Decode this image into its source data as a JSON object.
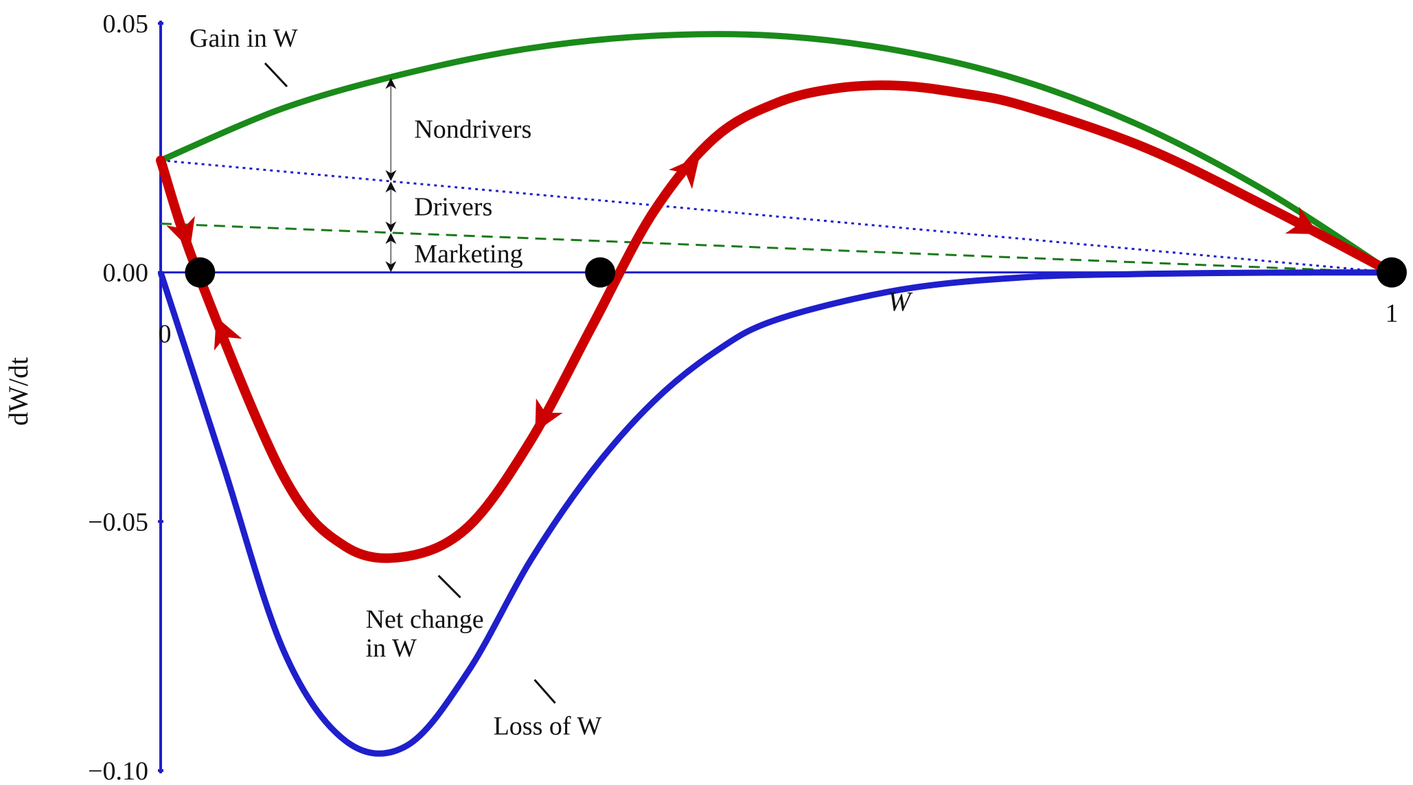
{
  "chart_data": {
    "type": "line",
    "title": "",
    "xlabel": "W",
    "ylabel": "dW/dt",
    "xlim": [
      0,
      1
    ],
    "ylim": [
      -0.1,
      0.05
    ],
    "yticks": [
      "0.05",
      "0.00",
      "−0.05",
      "−0.10"
    ],
    "xticks": [
      "0",
      "1"
    ],
    "grid": false,
    "colors": {
      "gain": "#1a8a1a",
      "loss": "#1f1fcc",
      "net": "#cc0000",
      "axis": "#1f1fcc",
      "nondrivers_line": "#1f1fcc",
      "marketing_line": "#1a7a1a"
    },
    "series": [
      {
        "name": "Gain in W",
        "x": [
          0,
          0.1,
          0.2,
          0.3,
          0.4,
          0.5,
          0.6,
          0.7,
          0.8,
          0.9,
          1.0
        ],
        "y": [
          0.0225,
          0.033,
          0.04,
          0.045,
          0.0475,
          0.0475,
          0.0445,
          0.0385,
          0.029,
          0.016,
          0.0
        ]
      },
      {
        "name": "Loss of W",
        "x": [
          0,
          0.05,
          0.1,
          0.15,
          0.2,
          0.25,
          0.3,
          0.35,
          0.4,
          0.45,
          0.5,
          0.6,
          0.7,
          0.8,
          0.9,
          1.0
        ],
        "y": [
          0,
          -0.038,
          -0.076,
          -0.094,
          -0.095,
          -0.08,
          -0.058,
          -0.04,
          -0.026,
          -0.016,
          -0.0095,
          -0.0035,
          -0.001,
          -0.0003,
          -5e-05,
          0
        ]
      },
      {
        "name": "Net change in W",
        "x": [
          0,
          0.03,
          0.1,
          0.15,
          0.2,
          0.25,
          0.3,
          0.35,
          0.4,
          0.45,
          0.5,
          0.55,
          0.6,
          0.65,
          0.7,
          0.8,
          0.9,
          1.0
        ],
        "y": [
          0.0225,
          0.0,
          -0.041,
          -0.055,
          -0.057,
          -0.051,
          -0.034,
          -0.011,
          0.012,
          0.027,
          0.034,
          0.037,
          0.0375,
          0.036,
          0.0335,
          0.025,
          0.013,
          0.0
        ]
      },
      {
        "name": "Nondrivers",
        "style": "dotted",
        "x": [
          0,
          1
        ],
        "y": [
          0.0225,
          0
        ]
      },
      {
        "name": "Marketing",
        "style": "dashed",
        "x": [
          0,
          1
        ],
        "y": [
          0.0098,
          0
        ]
      }
    ],
    "equilibria": [
      {
        "x": 0.032,
        "y": 0,
        "stable": true
      },
      {
        "x": 0.357,
        "y": 0,
        "stable": false
      },
      {
        "x": 1.0,
        "y": 0,
        "stable": true
      }
    ],
    "flow_arrows": [
      {
        "x": 0.02,
        "dir": "down"
      },
      {
        "x": 0.05,
        "dir": "up"
      },
      {
        "x": 0.31,
        "dir": "down"
      },
      {
        "x": 0.43,
        "dir": "up"
      },
      {
        "x": 0.93,
        "dir": "down"
      }
    ],
    "annotations": {
      "gain_label": "Gain in W",
      "net_label_line1": "Net change",
      "net_label_line2": "in W",
      "loss_label": "Loss of W",
      "nondrivers": "Nondrivers",
      "drivers": "Drivers",
      "marketing": "Marketing",
      "bracket_x": 0.187
    }
  }
}
